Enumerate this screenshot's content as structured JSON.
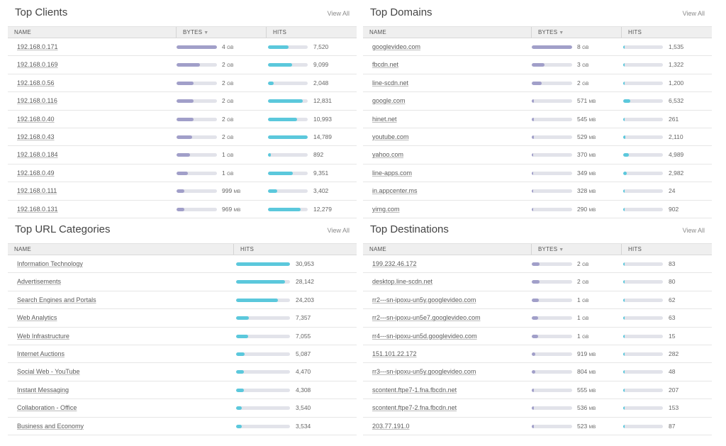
{
  "view_all_label": "View All",
  "colors": {
    "bytes_bar": "#a19fc9",
    "hits_bar": "#5bc8dc",
    "track": "#e2e3ea"
  },
  "sort_icon": "sort-down-icon",
  "top_clients": {
    "title": "Top Clients",
    "columns": {
      "name": "NAME",
      "bytes": "BYTES",
      "hits": "HITS"
    },
    "rows": [
      {
        "name": "192.168.0.171",
        "bytes_num": "4",
        "bytes_unit": "GB",
        "bytes_frac": 1.0,
        "hits": "7,520",
        "hits_frac": 0.51
      },
      {
        "name": "192.168.0.169",
        "bytes_num": "2",
        "bytes_unit": "GB",
        "bytes_frac": 0.58,
        "hits": "9,099",
        "hits_frac": 0.61
      },
      {
        "name": "192.168.0.56",
        "bytes_num": "2",
        "bytes_unit": "GB",
        "bytes_frac": 0.42,
        "hits": "2,048",
        "hits_frac": 0.14
      },
      {
        "name": "192.168.0.116",
        "bytes_num": "2",
        "bytes_unit": "GB",
        "bytes_frac": 0.42,
        "hits": "12,831",
        "hits_frac": 0.87
      },
      {
        "name": "192.168.0.40",
        "bytes_num": "2",
        "bytes_unit": "GB",
        "bytes_frac": 0.42,
        "hits": "10,993",
        "hits_frac": 0.74
      },
      {
        "name": "192.168.0.43",
        "bytes_num": "2",
        "bytes_unit": "GB",
        "bytes_frac": 0.38,
        "hits": "14,789",
        "hits_frac": 1.0
      },
      {
        "name": "192.168.0.184",
        "bytes_num": "1",
        "bytes_unit": "GB",
        "bytes_frac": 0.33,
        "hits": "892",
        "hits_frac": 0.07
      },
      {
        "name": "192.168.0.49",
        "bytes_num": "1",
        "bytes_unit": "GB",
        "bytes_frac": 0.28,
        "hits": "9,351",
        "hits_frac": 0.63
      },
      {
        "name": "192.168.0.111",
        "bytes_num": "999",
        "bytes_unit": "MB",
        "bytes_frac": 0.2,
        "hits": "3,402",
        "hits_frac": 0.23
      },
      {
        "name": "192.168.0.131",
        "bytes_num": "969",
        "bytes_unit": "MB",
        "bytes_frac": 0.2,
        "hits": "12,279",
        "hits_frac": 0.83
      }
    ]
  },
  "top_domains": {
    "title": "Top Domains",
    "columns": {
      "name": "NAME",
      "bytes": "BYTES",
      "hits": "HITS"
    },
    "rows": [
      {
        "name": "googlevideo.com",
        "bytes_num": "8",
        "bytes_unit": "GB",
        "bytes_frac": 1.0,
        "hits": "1,535",
        "hits_frac": 0.03
      },
      {
        "name": "fbcdn.net",
        "bytes_num": "3",
        "bytes_unit": "GB",
        "bytes_frac": 0.31,
        "hits": "1,322",
        "hits_frac": 0.03
      },
      {
        "name": "line-scdn.net",
        "bytes_num": "2",
        "bytes_unit": "GB",
        "bytes_frac": 0.25,
        "hits": "1,200",
        "hits_frac": 0.03
      },
      {
        "name": "google.com",
        "bytes_num": "571",
        "bytes_unit": "MB",
        "bytes_frac": 0.06,
        "hits": "6,532",
        "hits_frac": 0.18
      },
      {
        "name": "hinet.net",
        "bytes_num": "545",
        "bytes_unit": "MB",
        "bytes_frac": 0.06,
        "hits": "261",
        "hits_frac": 0.02
      },
      {
        "name": "youtube.com",
        "bytes_num": "529",
        "bytes_unit": "MB",
        "bytes_frac": 0.06,
        "hits": "2,110",
        "hits_frac": 0.06
      },
      {
        "name": "yahoo.com",
        "bytes_num": "370",
        "bytes_unit": "MB",
        "bytes_frac": 0.04,
        "hits": "4,989",
        "hits_frac": 0.14
      },
      {
        "name": "line-apps.com",
        "bytes_num": "349",
        "bytes_unit": "MB",
        "bytes_frac": 0.04,
        "hits": "2,982",
        "hits_frac": 0.09
      },
      {
        "name": "in.appcenter.ms",
        "bytes_num": "328",
        "bytes_unit": "MB",
        "bytes_frac": 0.04,
        "hits": "24",
        "hits_frac": 0.01
      },
      {
        "name": "yimg.com",
        "bytes_num": "290",
        "bytes_unit": "MB",
        "bytes_frac": 0.03,
        "hits": "902",
        "hits_frac": 0.02
      }
    ]
  },
  "top_url_categories": {
    "title": "Top URL Categories",
    "columns": {
      "name": "NAME",
      "hits": "HITS"
    },
    "rows": [
      {
        "name": "Information Technology",
        "hits": "30,953",
        "hits_frac": 1.0
      },
      {
        "name": "Advertisements",
        "hits": "28,142",
        "hits_frac": 0.91
      },
      {
        "name": "Search Engines and Portals",
        "hits": "24,203",
        "hits_frac": 0.78
      },
      {
        "name": "Web Analytics",
        "hits": "7,357",
        "hits_frac": 0.24
      },
      {
        "name": "Web Infrastructure",
        "hits": "7,055",
        "hits_frac": 0.23
      },
      {
        "name": "Internet Auctions",
        "hits": "5,087",
        "hits_frac": 0.16
      },
      {
        "name": "Social Web - YouTube",
        "hits": "4,470",
        "hits_frac": 0.14
      },
      {
        "name": "Instant Messaging",
        "hits": "4,308",
        "hits_frac": 0.14
      },
      {
        "name": "Collaboration - Office",
        "hits": "3,540",
        "hits_frac": 0.11
      },
      {
        "name": "Business and Economy",
        "hits": "3,534",
        "hits_frac": 0.11
      }
    ]
  },
  "top_destinations": {
    "title": "Top Destinations",
    "columns": {
      "name": "NAME",
      "bytes": "BYTES",
      "hits": "HITS"
    },
    "rows": [
      {
        "name": "199.232.46.172",
        "bytes_num": "2",
        "bytes_unit": "GB",
        "bytes_frac": 0.2,
        "hits": "83",
        "hits_frac": 0.01
      },
      {
        "name": "desktop.line-scdn.net",
        "bytes_num": "2",
        "bytes_unit": "GB",
        "bytes_frac": 0.2,
        "hits": "80",
        "hits_frac": 0.01
      },
      {
        "name": "rr2---sn-ipoxu-un5y.googlevideo.com",
        "bytes_num": "1",
        "bytes_unit": "GB",
        "bytes_frac": 0.17,
        "hits": "62",
        "hits_frac": 0.01
      },
      {
        "name": "rr2---sn-ipoxu-un5e7.googlevideo.com",
        "bytes_num": "1",
        "bytes_unit": "GB",
        "bytes_frac": 0.16,
        "hits": "63",
        "hits_frac": 0.01
      },
      {
        "name": "rr4---sn-ipoxu-un5d.googlevideo.com",
        "bytes_num": "1",
        "bytes_unit": "GB",
        "bytes_frac": 0.15,
        "hits": "15",
        "hits_frac": 0.01
      },
      {
        "name": "151.101.22.172",
        "bytes_num": "919",
        "bytes_unit": "MB",
        "bytes_frac": 0.09,
        "hits": "282",
        "hits_frac": 0.02
      },
      {
        "name": "rr3---sn-ipoxu-un5y.googlevideo.com",
        "bytes_num": "804",
        "bytes_unit": "MB",
        "bytes_frac": 0.08,
        "hits": "48",
        "hits_frac": 0.01
      },
      {
        "name": "scontent.ftpe7-1.fna.fbcdn.net",
        "bytes_num": "555",
        "bytes_unit": "MB",
        "bytes_frac": 0.06,
        "hits": "207",
        "hits_frac": 0.02
      },
      {
        "name": "scontent.ftpe7-2.fna.fbcdn.net",
        "bytes_num": "536",
        "bytes_unit": "MB",
        "bytes_frac": 0.06,
        "hits": "153",
        "hits_frac": 0.02
      },
      {
        "name": "203.77.191.0",
        "bytes_num": "523",
        "bytes_unit": "MB",
        "bytes_frac": 0.05,
        "hits": "87",
        "hits_frac": 0.01
      }
    ]
  }
}
